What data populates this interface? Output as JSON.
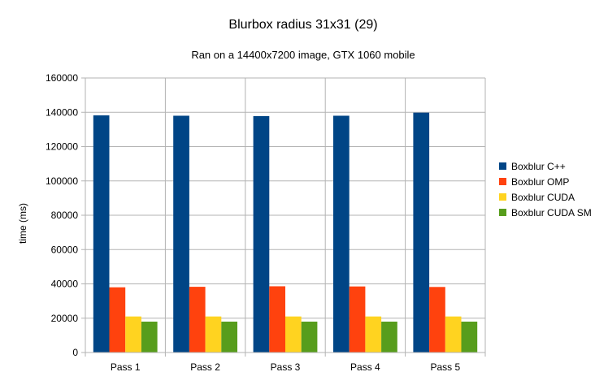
{
  "chart_data": {
    "type": "bar",
    "title": "Blurbox radius 31x31 (29)",
    "subtitle": "Ran on a 14400x7200 image, GTX 1060 mobile",
    "xlabel": "",
    "ylabel": "time (ms)",
    "ylim": [
      0,
      160000
    ],
    "yticks": [
      0,
      20000,
      40000,
      60000,
      80000,
      100000,
      120000,
      140000,
      160000
    ],
    "grid": true,
    "legend_position": "right",
    "categories": [
      "Pass 1",
      "Pass 2",
      "Pass 3",
      "Pass 4",
      "Pass 5"
    ],
    "series": [
      {
        "name": "Boxblur C++",
        "color": "#004586",
        "values": [
          138200,
          138000,
          137800,
          138000,
          139800
        ]
      },
      {
        "name": "Boxblur OMP",
        "color": "#ff420e",
        "values": [
          38000,
          38300,
          38600,
          38500,
          38200
        ]
      },
      {
        "name": "Boxblur CUDA",
        "color": "#ffd320",
        "values": [
          21000,
          21000,
          21000,
          21000,
          21000
        ]
      },
      {
        "name": "Boxblur CUDA SM",
        "color": "#579d1c",
        "values": [
          18000,
          18000,
          18000,
          18000,
          18000
        ]
      }
    ]
  }
}
